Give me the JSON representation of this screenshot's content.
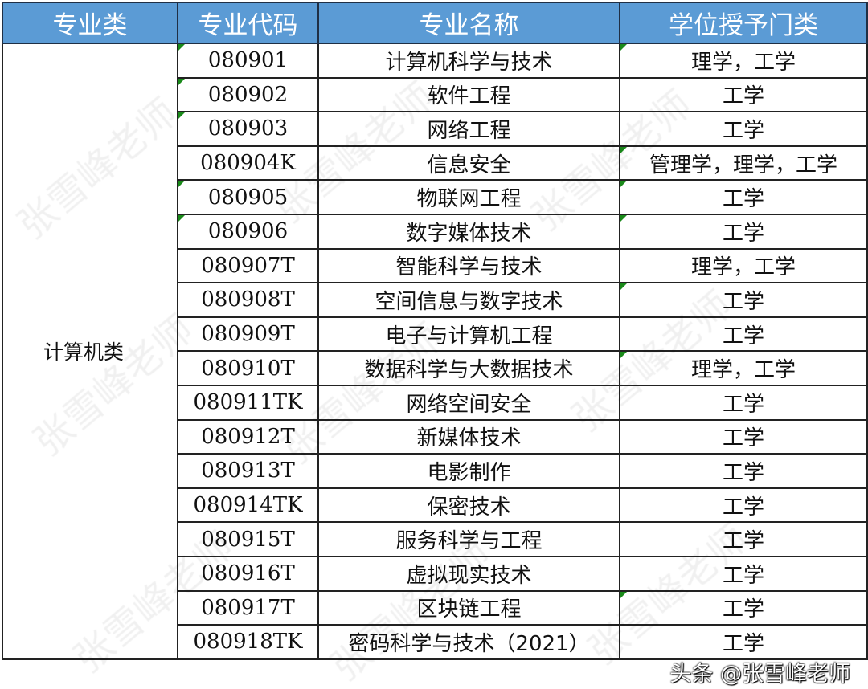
{
  "headers": [
    "专业类",
    "专业代码",
    "专业名称",
    "学位授予门类"
  ],
  "category": "计算机类",
  "rows": [
    {
      "code": "080901",
      "name": "计算机科学与技术",
      "degree": "理学，工学"
    },
    {
      "code": "080902",
      "name": "软件工程",
      "degree": "工学"
    },
    {
      "code": "080903",
      "name": "网络工程",
      "degree": "工学"
    },
    {
      "code": "080904K",
      "name": "信息安全",
      "degree": "管理学，理学，工学"
    },
    {
      "code": "080905",
      "name": "物联网工程",
      "degree": "工学"
    },
    {
      "code": "080906",
      "name": "数字媒体技术",
      "degree": "工学"
    },
    {
      "code": "080907T",
      "name": "智能科学与技术",
      "degree": "理学，工学"
    },
    {
      "code": "080908T",
      "name": "空间信息与数字技术",
      "degree": "工学"
    },
    {
      "code": "080909T",
      "name": "电子与计算机工程",
      "degree": "工学"
    },
    {
      "code": "080910T",
      "name": "数据科学与大数据技术",
      "degree": "理学，工学"
    },
    {
      "code": "080911TK",
      "name": "网络空间安全",
      "degree": "工学"
    },
    {
      "code": "080912T",
      "name": "新媒体技术",
      "degree": "工学"
    },
    {
      "code": "080913T",
      "name": "电影制作",
      "degree": "工学"
    },
    {
      "code": "080914TK",
      "name": "保密技术",
      "degree": "工学"
    },
    {
      "code": "080915T",
      "name": "服务科学与工程",
      "degree": "工学"
    },
    {
      "code": "080916T",
      "name": "虚拟现实技术",
      "degree": "工学"
    },
    {
      "code": "080917T",
      "name": "区块链工程",
      "degree": "工学"
    },
    {
      "code": "080918TK",
      "name": "密码科学与技术（2021）",
      "degree": "工学"
    }
  ],
  "watermark": "张雪峰老师",
  "credit": "头条 @张雪峰老师",
  "colors": {
    "header_bg": "#5b9bd5",
    "header_text": "#ffffff",
    "marker": "#1a8a1a"
  }
}
